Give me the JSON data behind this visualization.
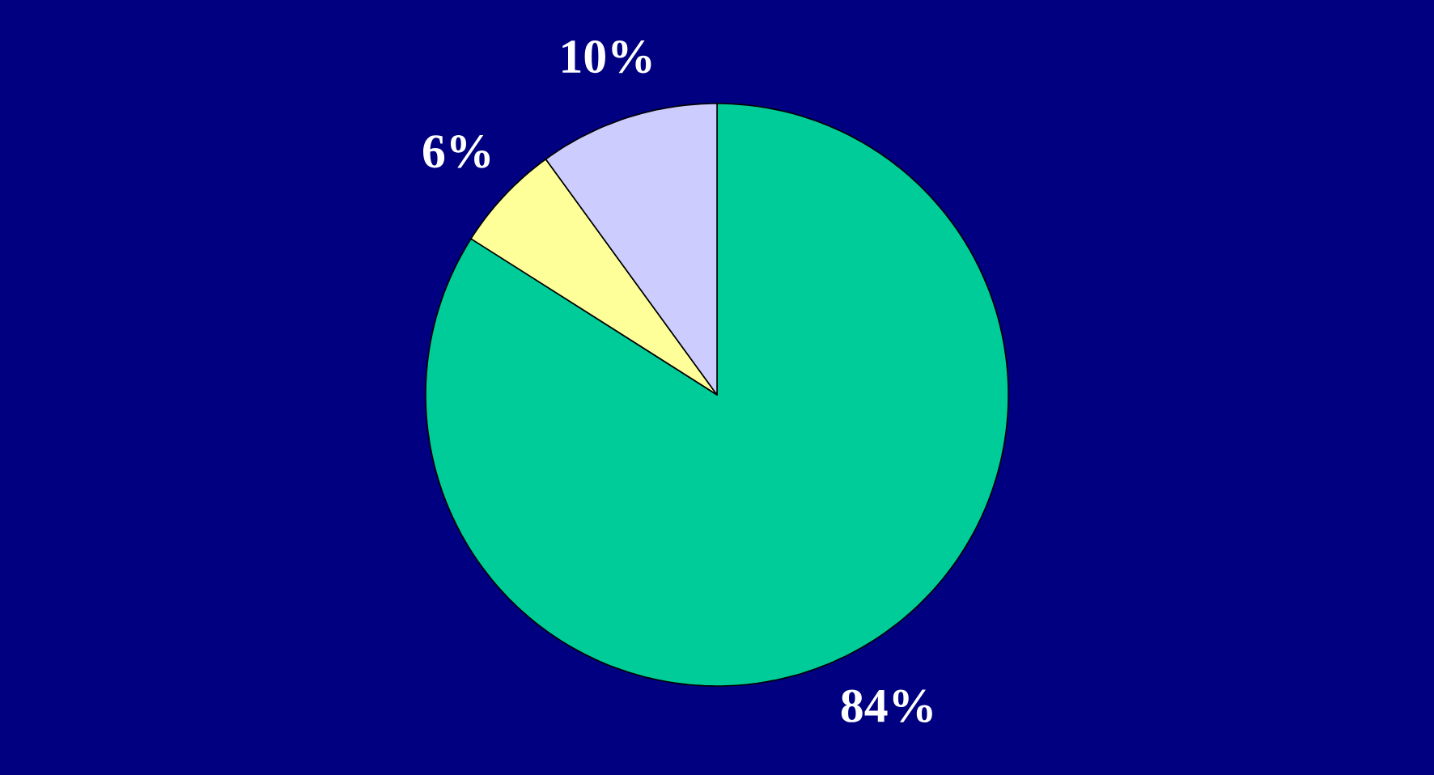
{
  "chart_data": {
    "type": "pie",
    "categories": [
      null,
      null,
      null
    ],
    "values": [
      84,
      6,
      10
    ],
    "colors": [
      "#00cc99",
      "#ffff99",
      "#ccccff"
    ],
    "value_labels": [
      "84%",
      "6%",
      "10%"
    ]
  }
}
